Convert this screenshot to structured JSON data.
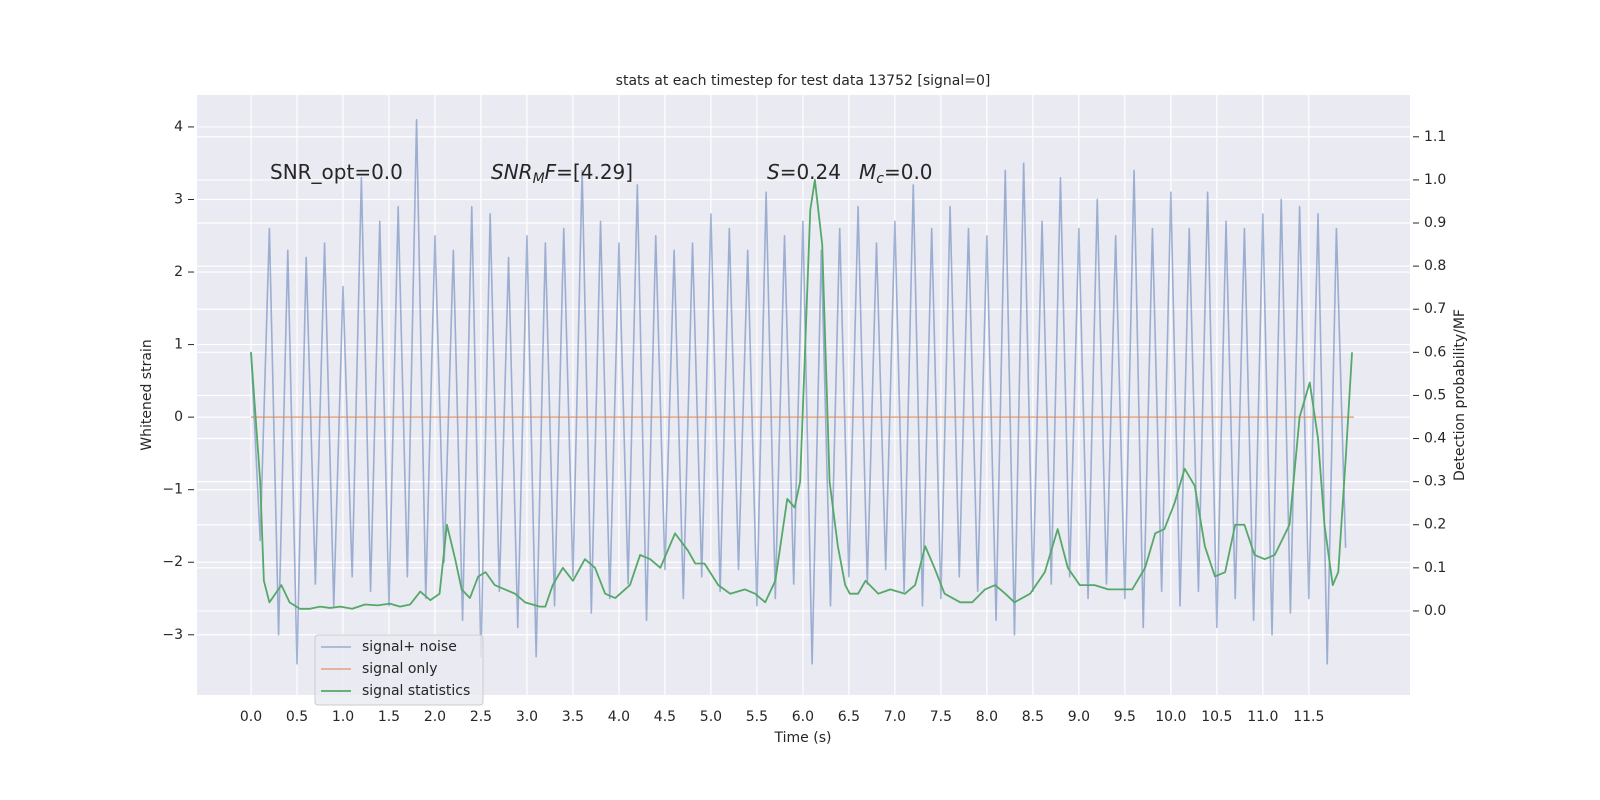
{
  "chart_data": {
    "type": "line",
    "title": "stats at each timestep for test data 13752 [signal=0]",
    "xlabel": "Time (s)",
    "ylabel": "Whitened strain",
    "y2label": "Detection probability/MF",
    "xlim": [
      -0.587,
      12.6
    ],
    "ylim": [
      -3.83,
      4.44
    ],
    "y2lim": [
      -0.195,
      1.197
    ],
    "xticks": [
      {
        "value": 0,
        "label": "0.0"
      },
      0.5,
      {
        "value": 1,
        "label": "1.0"
      },
      1.5,
      {
        "value": 2,
        "label": "2.0"
      },
      2.5,
      {
        "value": 3,
        "label": "3.0"
      },
      3.5,
      {
        "value": 4,
        "label": "4.0"
      },
      4.5,
      {
        "value": 5,
        "label": "5.0"
      },
      5.5,
      {
        "value": 6,
        "label": "6.0"
      },
      6.5,
      {
        "value": 7,
        "label": "7.0"
      },
      7.5,
      {
        "value": 8,
        "label": "8.0"
      },
      8.5,
      {
        "value": 9,
        "label": "9.0"
      },
      9.5,
      {
        "value": 10,
        "label": "10.0"
      },
      10.5,
      {
        "value": 11,
        "label": "11.0"
      },
      11.5
    ],
    "yticks": [
      {
        "value": -3,
        "label": "−3"
      },
      {
        "value": -2,
        "label": "−2"
      },
      {
        "value": -1,
        "label": "−1"
      },
      0,
      1,
      2,
      3,
      4
    ],
    "y2ticks": [
      {
        "value": 0,
        "label": "0.0"
      },
      0.1,
      0.2,
      0.3,
      0.4,
      0.5,
      0.6,
      0.7,
      0.8,
      0.9,
      {
        "value": 1,
        "label": "1.0"
      },
      1.1
    ],
    "grid": true,
    "legend_loc": "lower left",
    "annotations": [
      [
        {
          "text": "SNR_opt=0.0"
        }
      ],
      [
        {
          "text": "SNR",
          "italic": true
        },
        {
          "text": "M",
          "italic": true,
          "sub": true
        },
        {
          "text": "F",
          "italic": true
        },
        {
          "text": "=[4.29]"
        }
      ],
      [
        {
          "text": "S",
          "italic": true
        },
        {
          "text": "=0.24"
        }
      ],
      [
        {
          "text": "M",
          "italic": true
        },
        {
          "text": "c",
          "italic": true,
          "sub": true
        },
        {
          "text": "=0.0"
        }
      ]
    ],
    "series": [
      {
        "name": "signal+ noise",
        "color": "#4c72b0",
        "x": [
          0,
          0.1,
          0.2,
          0.3,
          0.4,
          0.5,
          0.6,
          0.7,
          0.8,
          0.9,
          1,
          1.1,
          1.2,
          1.3,
          1.4,
          1.5,
          1.6,
          1.7,
          1.8,
          1.9,
          2,
          2.1,
          2.2,
          2.3,
          2.4,
          2.5,
          2.6,
          2.7,
          2.8,
          2.9,
          3,
          3.1,
          3.2,
          3.3,
          3.4,
          3.5,
          3.6,
          3.7,
          3.8,
          3.9,
          4,
          4.1,
          4.2,
          4.3,
          4.4,
          4.5,
          4.6,
          4.7,
          4.8,
          4.9,
          5,
          5.1,
          5.2,
          5.3,
          5.4,
          5.5,
          5.6,
          5.7,
          5.8,
          5.9,
          6,
          6.1,
          6.2,
          6.3,
          6.4,
          6.5,
          6.6,
          6.7,
          6.8,
          6.9,
          7,
          7.1,
          7.2,
          7.3,
          7.4,
          7.5,
          7.6,
          7.7,
          7.8,
          7.9,
          8,
          8.1,
          8.2,
          8.3,
          8.4,
          8.5,
          8.6,
          8.7,
          8.8,
          8.9,
          9,
          9.1,
          9.2,
          9.3,
          9.4,
          9.5,
          9.6,
          9.7,
          9.8,
          9.9,
          10,
          10.1,
          10.2,
          10.3,
          10.4,
          10.5,
          10.6,
          10.7,
          10.8,
          10.9,
          11,
          11.1,
          11.2,
          11.3,
          11.4,
          11.5,
          11.6,
          11.7,
          11.8,
          11.9
        ],
        "values": [
          0.9,
          -1.7,
          2.6,
          -3.0,
          2.3,
          -3.4,
          2.2,
          -2.3,
          2.4,
          -2.6,
          1.8,
          -2.2,
          3.3,
          -2.4,
          2.7,
          -2.6,
          2.9,
          -2.2,
          4.1,
          -2.5,
          2.5,
          -2.0,
          2.3,
          -2.8,
          2.9,
          -3.3,
          2.8,
          -2.4,
          2.2,
          -2.9,
          2.5,
          -3.3,
          2.4,
          -2.6,
          2.6,
          -2.2,
          3.4,
          -2.7,
          2.7,
          -2.5,
          2.4,
          -2.3,
          3.2,
          -2.8,
          2.5,
          -2.1,
          2.3,
          -2.5,
          2.4,
          -2.2,
          2.8,
          -2.4,
          2.6,
          -2.1,
          2.3,
          -2.6,
          3.1,
          -2.5,
          2.5,
          -2.3,
          2.7,
          -3.4,
          2.3,
          -2.6,
          2.6,
          -2.2,
          2.9,
          -2.3,
          2.4,
          -2.1,
          2.7,
          -2.4,
          3.2,
          -2.6,
          2.6,
          -2.5,
          2.9,
          -2.2,
          2.6,
          -2.4,
          2.5,
          -2.8,
          3.4,
          -3.0,
          3.5,
          -2.4,
          2.7,
          -2.3,
          3.3,
          -2.2,
          2.6,
          -2.5,
          3.0,
          -2.3,
          2.5,
          -2.5,
          3.4,
          -2.9,
          2.6,
          -2.4,
          3.1,
          -2.6,
          2.6,
          -2.4,
          3.1,
          -2.9,
          2.7,
          -2.5,
          2.6,
          -2.8,
          2.8,
          -3.0,
          3.0,
          -2.7,
          2.9,
          -2.5,
          2.8,
          -3.4,
          2.6,
          -1.8
        ]
      },
      {
        "name": "signal only",
        "color": "#dd8452",
        "x": [
          0,
          11.99
        ],
        "values": [
          0,
          0
        ]
      },
      {
        "name": "signal statistics",
        "color": "#55a868",
        "axis": "y2",
        "x": [
          0,
          0.1,
          0.14,
          0.2,
          0.33,
          0.42,
          0.53,
          0.64,
          0.75,
          0.86,
          0.97,
          1.1,
          1.24,
          1.38,
          1.51,
          1.62,
          1.73,
          1.84,
          1.95,
          2.05,
          2.13,
          2.22,
          2.29,
          2.38,
          2.47,
          2.55,
          2.65,
          2.76,
          2.87,
          2.98,
          3.14,
          3.2,
          3.28,
          3.39,
          3.5,
          3.63,
          3.74,
          3.85,
          3.96,
          4.12,
          4.23,
          4.34,
          4.45,
          4.61,
          4.75,
          4.83,
          4.93,
          5.08,
          5.21,
          5.37,
          5.48,
          5.59,
          5.7,
          5.83,
          5.91,
          5.97,
          6.08,
          6.13,
          6.21,
          6.29,
          6.38,
          6.46,
          6.51,
          6.6,
          6.68,
          6.82,
          6.95,
          7.11,
          7.22,
          7.33,
          7.43,
          7.54,
          7.71,
          7.84,
          7.98,
          8.09,
          8.2,
          8.3,
          8.47,
          8.63,
          8.77,
          8.88,
          9.01,
          9.17,
          9.32,
          9.45,
          9.58,
          9.72,
          9.83,
          9.93,
          10.04,
          10.15,
          10.26,
          10.37,
          10.48,
          10.59,
          10.7,
          10.8,
          10.91,
          11.02,
          11.13,
          11.29,
          11.4,
          11.51,
          11.6,
          11.67,
          11.76,
          11.82,
          11.9,
          11.97
        ],
        "values": [
          0.6,
          0.3,
          0.07,
          0.02,
          0.06,
          0.02,
          0.005,
          0.005,
          0.01,
          0.007,
          0.01,
          0.005,
          0.015,
          0.013,
          0.017,
          0.01,
          0.015,
          0.045,
          0.025,
          0.04,
          0.2,
          0.12,
          0.05,
          0.03,
          0.08,
          0.09,
          0.06,
          0.05,
          0.04,
          0.02,
          0.01,
          0.01,
          0.06,
          0.1,
          0.07,
          0.12,
          0.1,
          0.04,
          0.03,
          0.06,
          0.13,
          0.12,
          0.1,
          0.18,
          0.14,
          0.11,
          0.11,
          0.06,
          0.04,
          0.05,
          0.04,
          0.02,
          0.07,
          0.26,
          0.24,
          0.3,
          0.93,
          1.0,
          0.85,
          0.3,
          0.15,
          0.06,
          0.04,
          0.04,
          0.07,
          0.04,
          0.05,
          0.04,
          0.06,
          0.15,
          0.1,
          0.04,
          0.02,
          0.02,
          0.05,
          0.06,
          0.04,
          0.02,
          0.04,
          0.09,
          0.19,
          0.1,
          0.06,
          0.06,
          0.05,
          0.05,
          0.05,
          0.1,
          0.18,
          0.19,
          0.25,
          0.33,
          0.29,
          0.15,
          0.08,
          0.09,
          0.2,
          0.2,
          0.13,
          0.12,
          0.13,
          0.2,
          0.45,
          0.53,
          0.4,
          0.2,
          0.06,
          0.09,
          0.35,
          0.6
        ]
      }
    ]
  }
}
